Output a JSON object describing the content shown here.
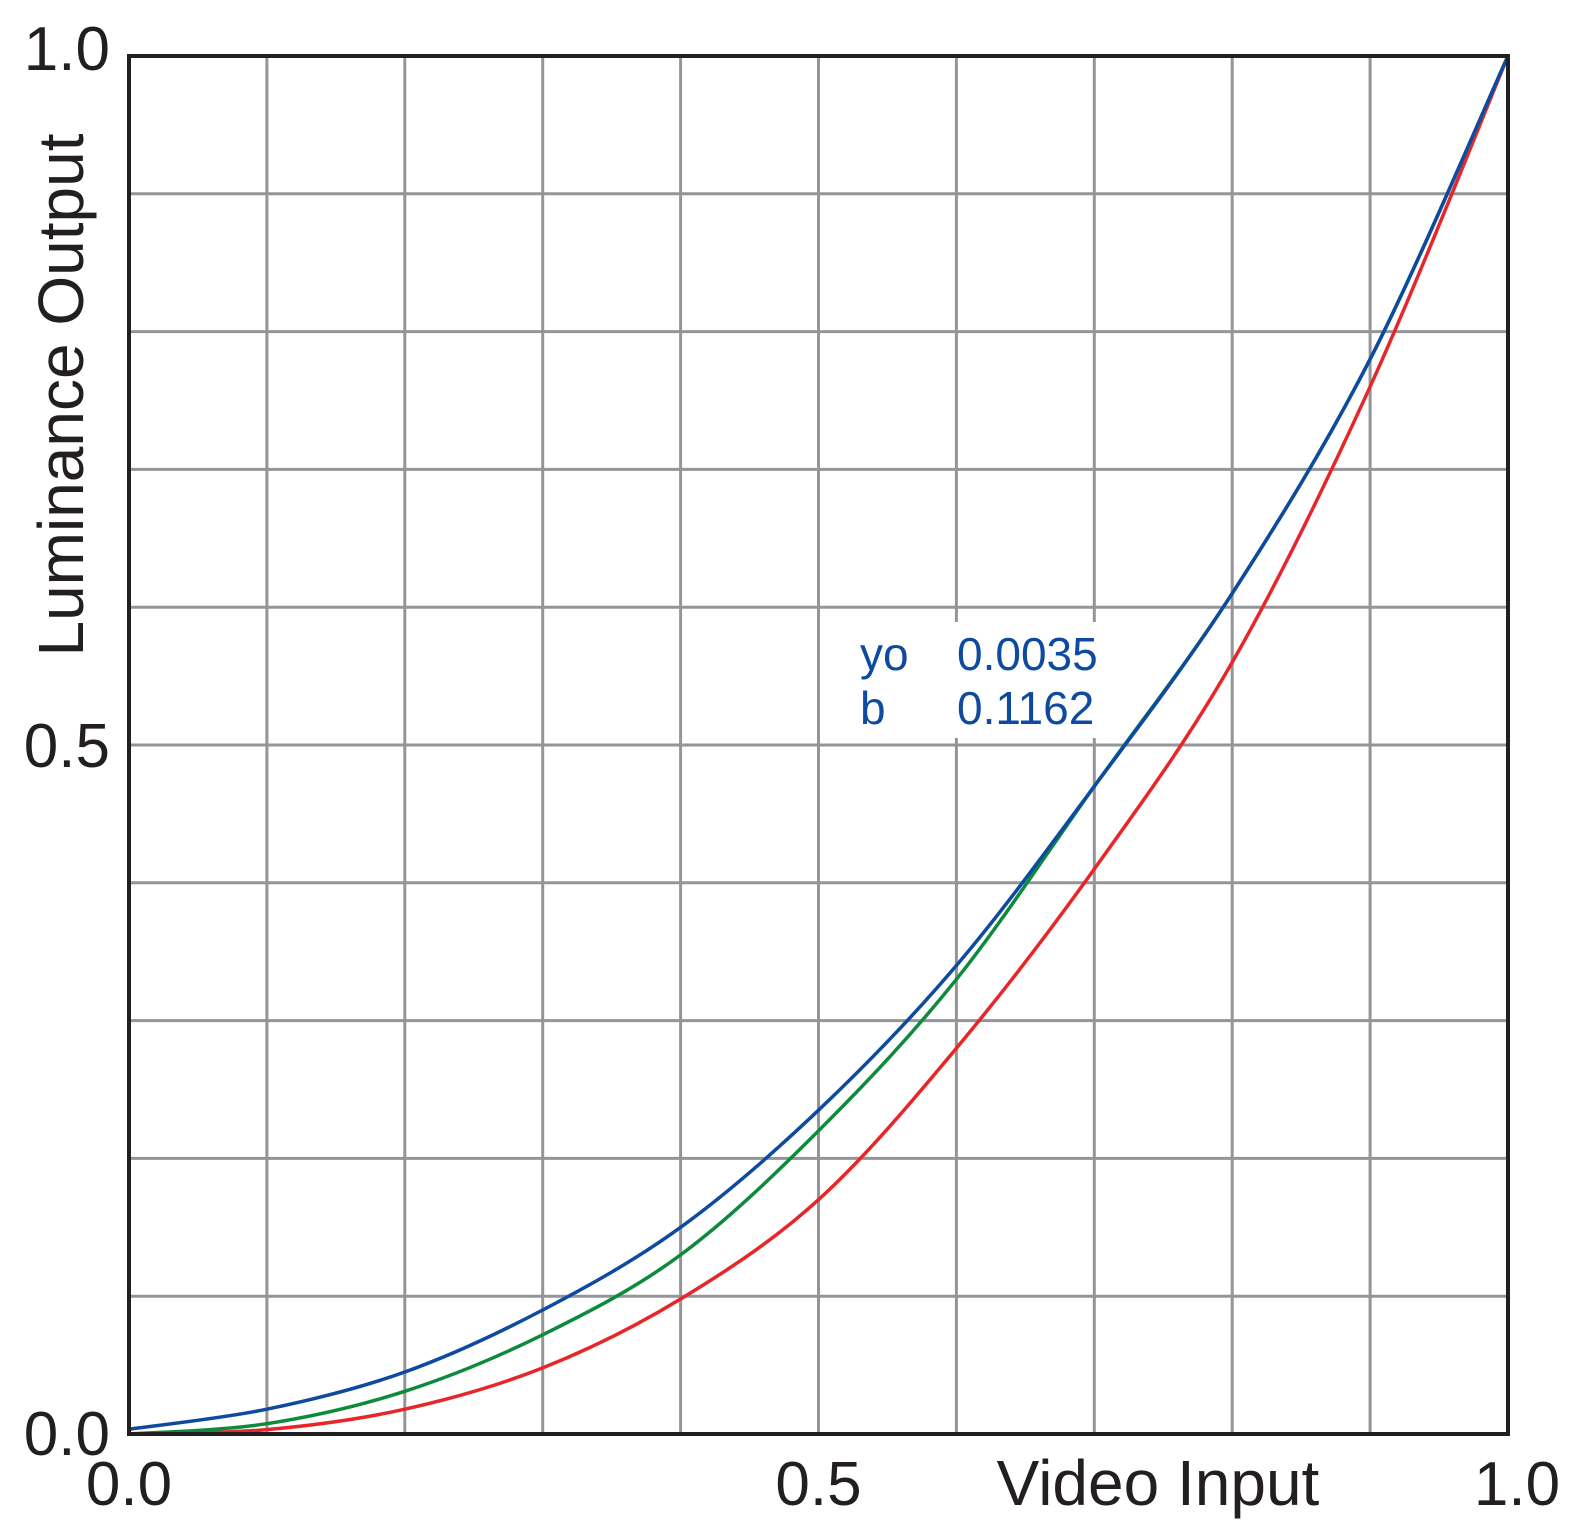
{
  "chart_data": {
    "type": "line",
    "title": "",
    "xlabel": "Video Input",
    "ylabel": "Luminance Output",
    "xlim": [
      0,
      1
    ],
    "ylim": [
      0,
      1
    ],
    "grid": true,
    "x_ticks": [
      "0.0",
      "0.5",
      "1.0"
    ],
    "y_ticks": [
      "0.0",
      "0.5",
      "1.0"
    ],
    "series": [
      {
        "color": "#e8262a",
        "x": [
          0,
          0.1,
          0.2,
          0.3,
          0.4,
          0.5,
          0.6,
          0.7,
          0.8,
          0.9,
          1.0
        ],
        "y": [
          0,
          0.0032,
          0.018,
          0.048,
          0.098,
          0.17,
          0.28,
          0.41,
          0.56,
          0.76,
          1.0
        ]
      },
      {
        "color": "#0e8a3c",
        "x": [
          0,
          0.1,
          0.2,
          0.3,
          0.4,
          0.5,
          0.6,
          0.7,
          0.8,
          0.9,
          1.0
        ],
        "y": [
          0,
          0.0075,
          0.031,
          0.072,
          0.13,
          0.22,
          0.33,
          0.47,
          0.61,
          0.78,
          1.0
        ]
      },
      {
        "color": "#0d4aa0",
        "x": [
          0,
          0.1,
          0.2,
          0.3,
          0.4,
          0.5,
          0.6,
          0.7,
          0.8,
          0.9,
          1.0
        ],
        "y": [
          0.0035,
          0.018,
          0.045,
          0.09,
          0.15,
          0.235,
          0.34,
          0.47,
          0.61,
          0.78,
          1.0
        ]
      }
    ],
    "annotation": {
      "color": "#0d4aa0",
      "rows": [
        {
          "label": "yo",
          "value": "0.0035"
        },
        {
          "label": "b",
          "value": "0.1162"
        }
      ]
    },
    "colors": {
      "grid": "#939598",
      "frame": "#231f20",
      "text": "#231f20"
    }
  }
}
